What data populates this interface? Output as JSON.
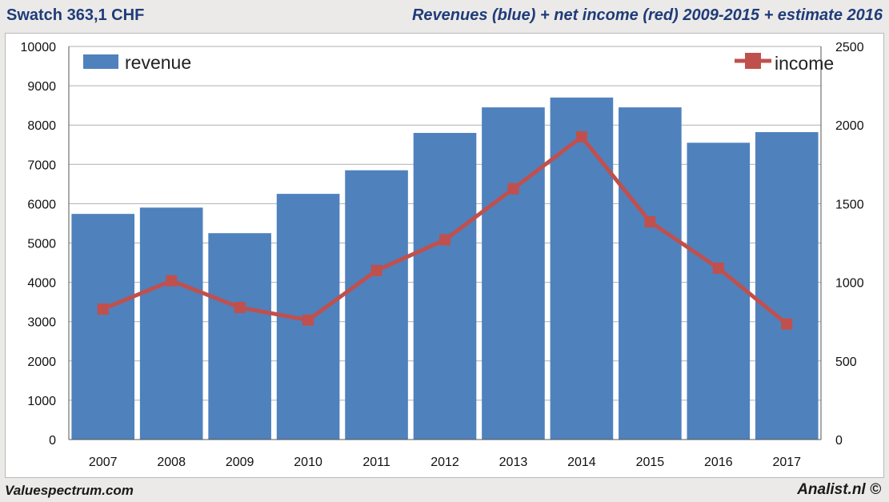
{
  "header": {
    "left_title": "Swatch 363,1 CHF",
    "right_title": "Revenues (blue) + net income (red) 2009-2015 + estimate 2016"
  },
  "footer": {
    "left": "Valuespectrum.com",
    "right": "Analist.nl ©"
  },
  "colors": {
    "revenue": "#4f81bd",
    "income": "#c0504d",
    "grid": "#b0b0b0",
    "title": "#1f3c7a"
  },
  "chart_data": {
    "type": "bar",
    "title": "Revenues (blue) + net income (red) 2009-2015 + estimate 2016",
    "categories": [
      "2007",
      "2008",
      "2009",
      "2010",
      "2011",
      "2012",
      "2013",
      "2014",
      "2015",
      "2016",
      "2017"
    ],
    "series": [
      {
        "name": "revenue",
        "type": "bar",
        "axis": "left",
        "values": [
          5740,
          5900,
          5250,
          6250,
          6850,
          7800,
          8450,
          8700,
          8450,
          7550,
          7820
        ]
      },
      {
        "name": "income",
        "type": "line",
        "axis": "right",
        "values": [
          830,
          1010,
          840,
          760,
          1075,
          1270,
          1595,
          1925,
          1385,
          1090,
          735
        ]
      }
    ],
    "y_left": {
      "min": 0,
      "max": 10000,
      "ticks": [
        0,
        1000,
        2000,
        3000,
        4000,
        5000,
        6000,
        7000,
        8000,
        9000,
        10000
      ]
    },
    "y_right": {
      "min": 0,
      "max": 2500,
      "ticks": [
        0,
        500,
        1000,
        1500,
        2000,
        2500
      ]
    },
    "legend": [
      {
        "label": "revenue",
        "placement": "top-left"
      },
      {
        "label": "income",
        "placement": "top-right"
      }
    ],
    "grid": true
  }
}
